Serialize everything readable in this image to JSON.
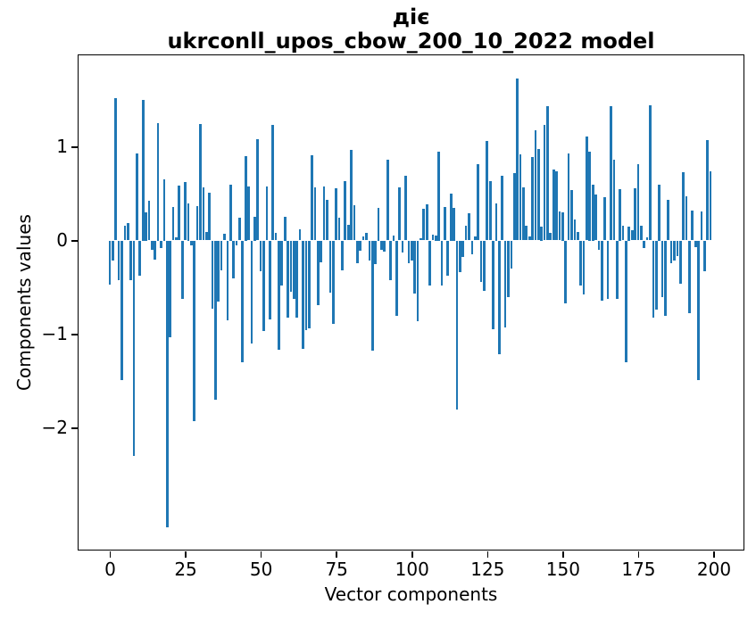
{
  "title": {
    "line1": "діє",
    "line2": "ukrconll_upos_cbow_200_10_2022 model"
  },
  "chart_data": {
    "type": "bar",
    "title": "діє — ukrconll_upos_cbow_200_10_2022 model",
    "xlabel": "Vector components",
    "ylabel": "Components values",
    "bar_color": "#1f77b4",
    "x_start": 0,
    "x_end": 199,
    "xlim": [
      -10.5,
      209.8
    ],
    "ylim": [
      -3.3,
      1.98
    ],
    "grid": false,
    "legend": false,
    "xticks": {
      "values": [
        0,
        25,
        50,
        75,
        100,
        125,
        150,
        175,
        200
      ],
      "labels": [
        "0",
        "25",
        "50",
        "75",
        "100",
        "125",
        "150",
        "175",
        "200"
      ]
    },
    "yticks": {
      "values": [
        1,
        0,
        -1,
        -2
      ],
      "labels": [
        "1",
        "0",
        "−1",
        "−2"
      ]
    },
    "values": [
      -0.47,
      -0.21,
      1.52,
      -0.42,
      -1.49,
      0.16,
      0.19,
      -0.42,
      -2.3,
      0.93,
      -0.38,
      1.5,
      0.3,
      0.42,
      -0.1,
      -0.2,
      1.25,
      -0.08,
      0.65,
      -3.06,
      -1.03,
      0.36,
      0.03,
      0.59,
      -0.62,
      0.62,
      0.4,
      -0.05,
      -1.93,
      0.37,
      1.24,
      0.57,
      0.09,
      0.51,
      -0.73,
      -1.7,
      -0.65,
      -0.32,
      0.07,
      -0.85,
      0.6,
      -0.4,
      -0.05,
      0.24,
      -1.3,
      0.9,
      0.58,
      -1.1,
      0.25,
      1.08,
      -0.33,
      -0.97,
      0.58,
      -0.84,
      1.23,
      0.08,
      -1.17,
      -0.48,
      0.25,
      -0.82,
      -0.55,
      -0.62,
      -0.82,
      0.12,
      -1.16,
      -0.96,
      -0.94,
      0.91,
      0.57,
      -0.69,
      -0.23,
      0.58,
      0.43,
      -0.56,
      -0.89,
      0.56,
      0.24,
      -0.32,
      0.63,
      0.17,
      0.97,
      0.38,
      -0.24,
      -0.11,
      0.04,
      0.08,
      -0.21,
      -1.18,
      -0.25,
      0.35,
      -0.1,
      -0.12,
      0.86,
      -0.42,
      0.05,
      -0.8,
      0.57,
      -0.13,
      0.69,
      -0.24,
      -0.21,
      -0.57,
      -0.86,
      0.02,
      0.34,
      0.39,
      -0.48,
      0.06,
      0.05,
      0.95,
      -0.48,
      0.36,
      -0.38,
      0.5,
      0.35,
      -1.8,
      -0.34,
      -0.18,
      0.16,
      0.29,
      -0.15,
      0.04,
      0.81,
      -0.44,
      -0.54,
      1.06,
      0.63,
      -0.95,
      0.4,
      -1.21,
      0.69,
      -0.93,
      -0.6,
      -0.3,
      0.72,
      1.73,
      0.92,
      0.57,
      0.16,
      0.04,
      0.89,
      1.18,
      0.98,
      0.15,
      1.23,
      1.43,
      0.08,
      0.76,
      0.74,
      0.31,
      0.3,
      -0.67,
      0.93,
      0.54,
      0.22,
      0.09,
      -0.48,
      -0.58,
      1.11,
      0.95,
      0.6,
      0.49,
      -0.1,
      -0.64,
      0.46,
      -0.62,
      1.43,
      0.86,
      -0.62,
      0.55,
      0.16,
      -1.3,
      0.15,
      0.11,
      0.56,
      0.81,
      0.16,
      -0.08,
      0.03,
      1.44,
      -0.82,
      -0.74,
      0.6,
      -0.6,
      -0.8,
      0.43,
      -0.24,
      -0.21,
      -0.17,
      -0.46,
      0.73,
      0.47,
      -0.78,
      0.32,
      -0.07,
      -1.49,
      0.31,
      -0.33,
      1.07,
      0.74
    ]
  }
}
